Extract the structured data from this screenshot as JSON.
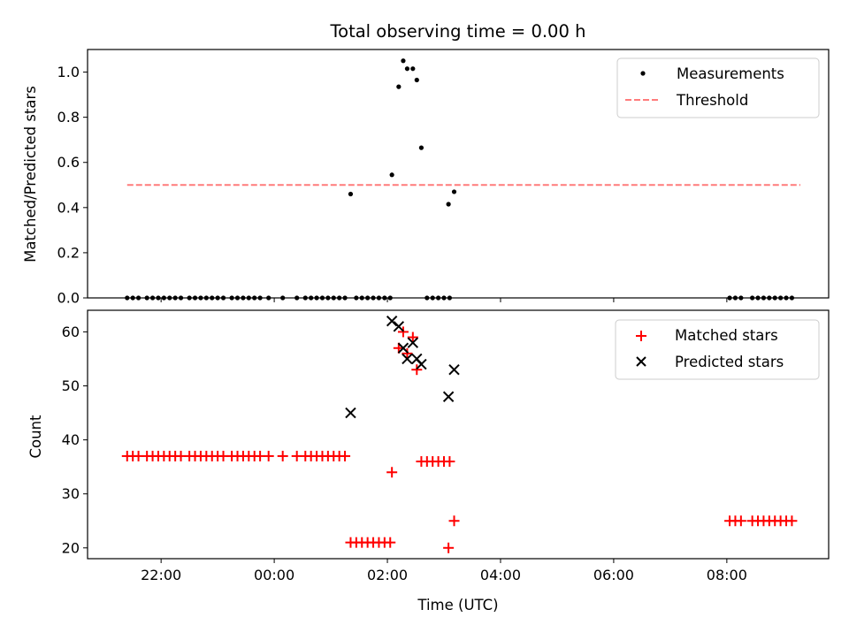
{
  "chart_data": [
    {
      "type": "scatter",
      "title": "Total observing time = 0.00 h",
      "xlabel": "",
      "ylabel": "Matched/Predicted stars",
      "ylim": [
        0,
        1.1
      ],
      "yticks": [
        "0.0",
        "0.2",
        "0.4",
        "0.6",
        "0.8",
        "1.0"
      ],
      "xlim_hours": [
        20.7,
        33.8
      ],
      "x_units": "hours since 00:00 UTC of first day",
      "legend": {
        "placement": "top-right",
        "entries": [
          "Measurements",
          "Threshold"
        ]
      },
      "threshold": {
        "name": "Threshold",
        "value": 0.5,
        "x_range": [
          21.4,
          33.3
        ],
        "color": "#ff7b7b"
      },
      "series": [
        {
          "name": "Measurements",
          "marker": "dot",
          "color": "#000000",
          "points": [
            [
              21.4,
              0
            ],
            [
              21.5,
              0
            ],
            [
              21.6,
              0
            ],
            [
              21.75,
              0
            ],
            [
              21.85,
              0
            ],
            [
              21.95,
              0
            ],
            [
              22.05,
              0
            ],
            [
              22.15,
              0
            ],
            [
              22.25,
              0
            ],
            [
              22.35,
              0
            ],
            [
              22.5,
              0
            ],
            [
              22.6,
              0
            ],
            [
              22.7,
              0
            ],
            [
              22.8,
              0
            ],
            [
              22.9,
              0
            ],
            [
              23.0,
              0
            ],
            [
              23.1,
              0
            ],
            [
              23.25,
              0
            ],
            [
              23.35,
              0
            ],
            [
              23.45,
              0
            ],
            [
              23.55,
              0
            ],
            [
              23.65,
              0
            ],
            [
              23.75,
              0
            ],
            [
              23.9,
              0
            ],
            [
              24.15,
              0
            ],
            [
              24.4,
              0
            ],
            [
              24.55,
              0
            ],
            [
              24.65,
              0
            ],
            [
              24.75,
              0
            ],
            [
              24.85,
              0
            ],
            [
              24.95,
              0
            ],
            [
              25.05,
              0
            ],
            [
              25.15,
              0
            ],
            [
              25.25,
              0
            ],
            [
              25.45,
              0
            ],
            [
              25.55,
              0
            ],
            [
              25.65,
              0
            ],
            [
              25.75,
              0
            ],
            [
              25.85,
              0
            ],
            [
              25.95,
              0
            ],
            [
              26.05,
              0
            ],
            [
              26.7,
              0
            ],
            [
              26.8,
              0
            ],
            [
              26.9,
              0
            ],
            [
              27.0,
              0
            ],
            [
              27.1,
              0
            ],
            [
              32.05,
              0
            ],
            [
              32.15,
              0
            ],
            [
              32.25,
              0
            ],
            [
              32.45,
              0
            ],
            [
              32.55,
              0
            ],
            [
              32.65,
              0
            ],
            [
              32.75,
              0
            ],
            [
              32.85,
              0
            ],
            [
              32.95,
              0
            ],
            [
              33.05,
              0
            ],
            [
              33.15,
              0
            ],
            [
              25.35,
              0.46
            ],
            [
              26.08,
              0.545
            ],
            [
              26.2,
              0.935
            ],
            [
              26.28,
              1.05
            ],
            [
              26.35,
              1.015
            ],
            [
              26.45,
              1.015
            ],
            [
              26.52,
              0.965
            ],
            [
              26.6,
              0.665
            ],
            [
              27.08,
              0.415
            ],
            [
              27.18,
              0.47
            ]
          ]
        }
      ]
    },
    {
      "type": "scatter",
      "title": "",
      "xlabel": "Time (UTC)",
      "ylabel": "Count",
      "ylim": [
        18,
        64
      ],
      "yticks": [
        "20",
        "30",
        "40",
        "50",
        "60"
      ],
      "xlim_hours": [
        20.7,
        33.8
      ],
      "xticks": [
        {
          "hour": 22,
          "label": "22:00"
        },
        {
          "hour": 24,
          "label": "00:00"
        },
        {
          "hour": 26,
          "label": "02:00"
        },
        {
          "hour": 28,
          "label": "04:00"
        },
        {
          "hour": 30,
          "label": "06:00"
        },
        {
          "hour": 32,
          "label": "08:00"
        }
      ],
      "legend": {
        "placement": "top-right",
        "entries": [
          "Matched stars",
          "Predicted stars"
        ]
      },
      "series": [
        {
          "name": "Matched stars",
          "marker": "plus",
          "color": "#ff0000",
          "points": [
            [
              21.4,
              37
            ],
            [
              21.5,
              37
            ],
            [
              21.6,
              37
            ],
            [
              21.75,
              37
            ],
            [
              21.85,
              37
            ],
            [
              21.95,
              37
            ],
            [
              22.05,
              37
            ],
            [
              22.15,
              37
            ],
            [
              22.25,
              37
            ],
            [
              22.35,
              37
            ],
            [
              22.5,
              37
            ],
            [
              22.6,
              37
            ],
            [
              22.7,
              37
            ],
            [
              22.8,
              37
            ],
            [
              22.9,
              37
            ],
            [
              23.0,
              37
            ],
            [
              23.1,
              37
            ],
            [
              23.25,
              37
            ],
            [
              23.35,
              37
            ],
            [
              23.45,
              37
            ],
            [
              23.55,
              37
            ],
            [
              23.65,
              37
            ],
            [
              23.75,
              37
            ],
            [
              23.9,
              37
            ],
            [
              24.15,
              37
            ],
            [
              24.4,
              37
            ],
            [
              24.55,
              37
            ],
            [
              24.65,
              37
            ],
            [
              24.75,
              37
            ],
            [
              24.85,
              37
            ],
            [
              24.95,
              37
            ],
            [
              25.05,
              37
            ],
            [
              25.15,
              37
            ],
            [
              25.25,
              37
            ],
            [
              25.35,
              21
            ],
            [
              25.45,
              21
            ],
            [
              25.55,
              21
            ],
            [
              25.65,
              21
            ],
            [
              25.75,
              21
            ],
            [
              25.85,
              21
            ],
            [
              25.95,
              21
            ],
            [
              26.05,
              21
            ],
            [
              26.08,
              34
            ],
            [
              26.2,
              57
            ],
            [
              26.28,
              60
            ],
            [
              26.35,
              56
            ],
            [
              26.45,
              59
            ],
            [
              26.52,
              53
            ],
            [
              26.6,
              36
            ],
            [
              26.7,
              36
            ],
            [
              26.8,
              36
            ],
            [
              26.9,
              36
            ],
            [
              27.0,
              36
            ],
            [
              27.1,
              36
            ],
            [
              27.08,
              20
            ],
            [
              27.18,
              25
            ],
            [
              32.05,
              25
            ],
            [
              32.15,
              25
            ],
            [
              32.25,
              25
            ],
            [
              32.45,
              25
            ],
            [
              32.55,
              25
            ],
            [
              32.65,
              25
            ],
            [
              32.75,
              25
            ],
            [
              32.85,
              25
            ],
            [
              32.95,
              25
            ],
            [
              33.05,
              25
            ],
            [
              33.15,
              25
            ]
          ]
        },
        {
          "name": "Predicted stars",
          "marker": "x",
          "color": "#000000",
          "points": [
            [
              25.35,
              45
            ],
            [
              26.08,
              62
            ],
            [
              26.2,
              61
            ],
            [
              26.28,
              57
            ],
            [
              26.35,
              55
            ],
            [
              26.45,
              58
            ],
            [
              26.52,
              55
            ],
            [
              26.6,
              54
            ],
            [
              27.08,
              48
            ],
            [
              27.18,
              53
            ]
          ]
        }
      ]
    }
  ]
}
